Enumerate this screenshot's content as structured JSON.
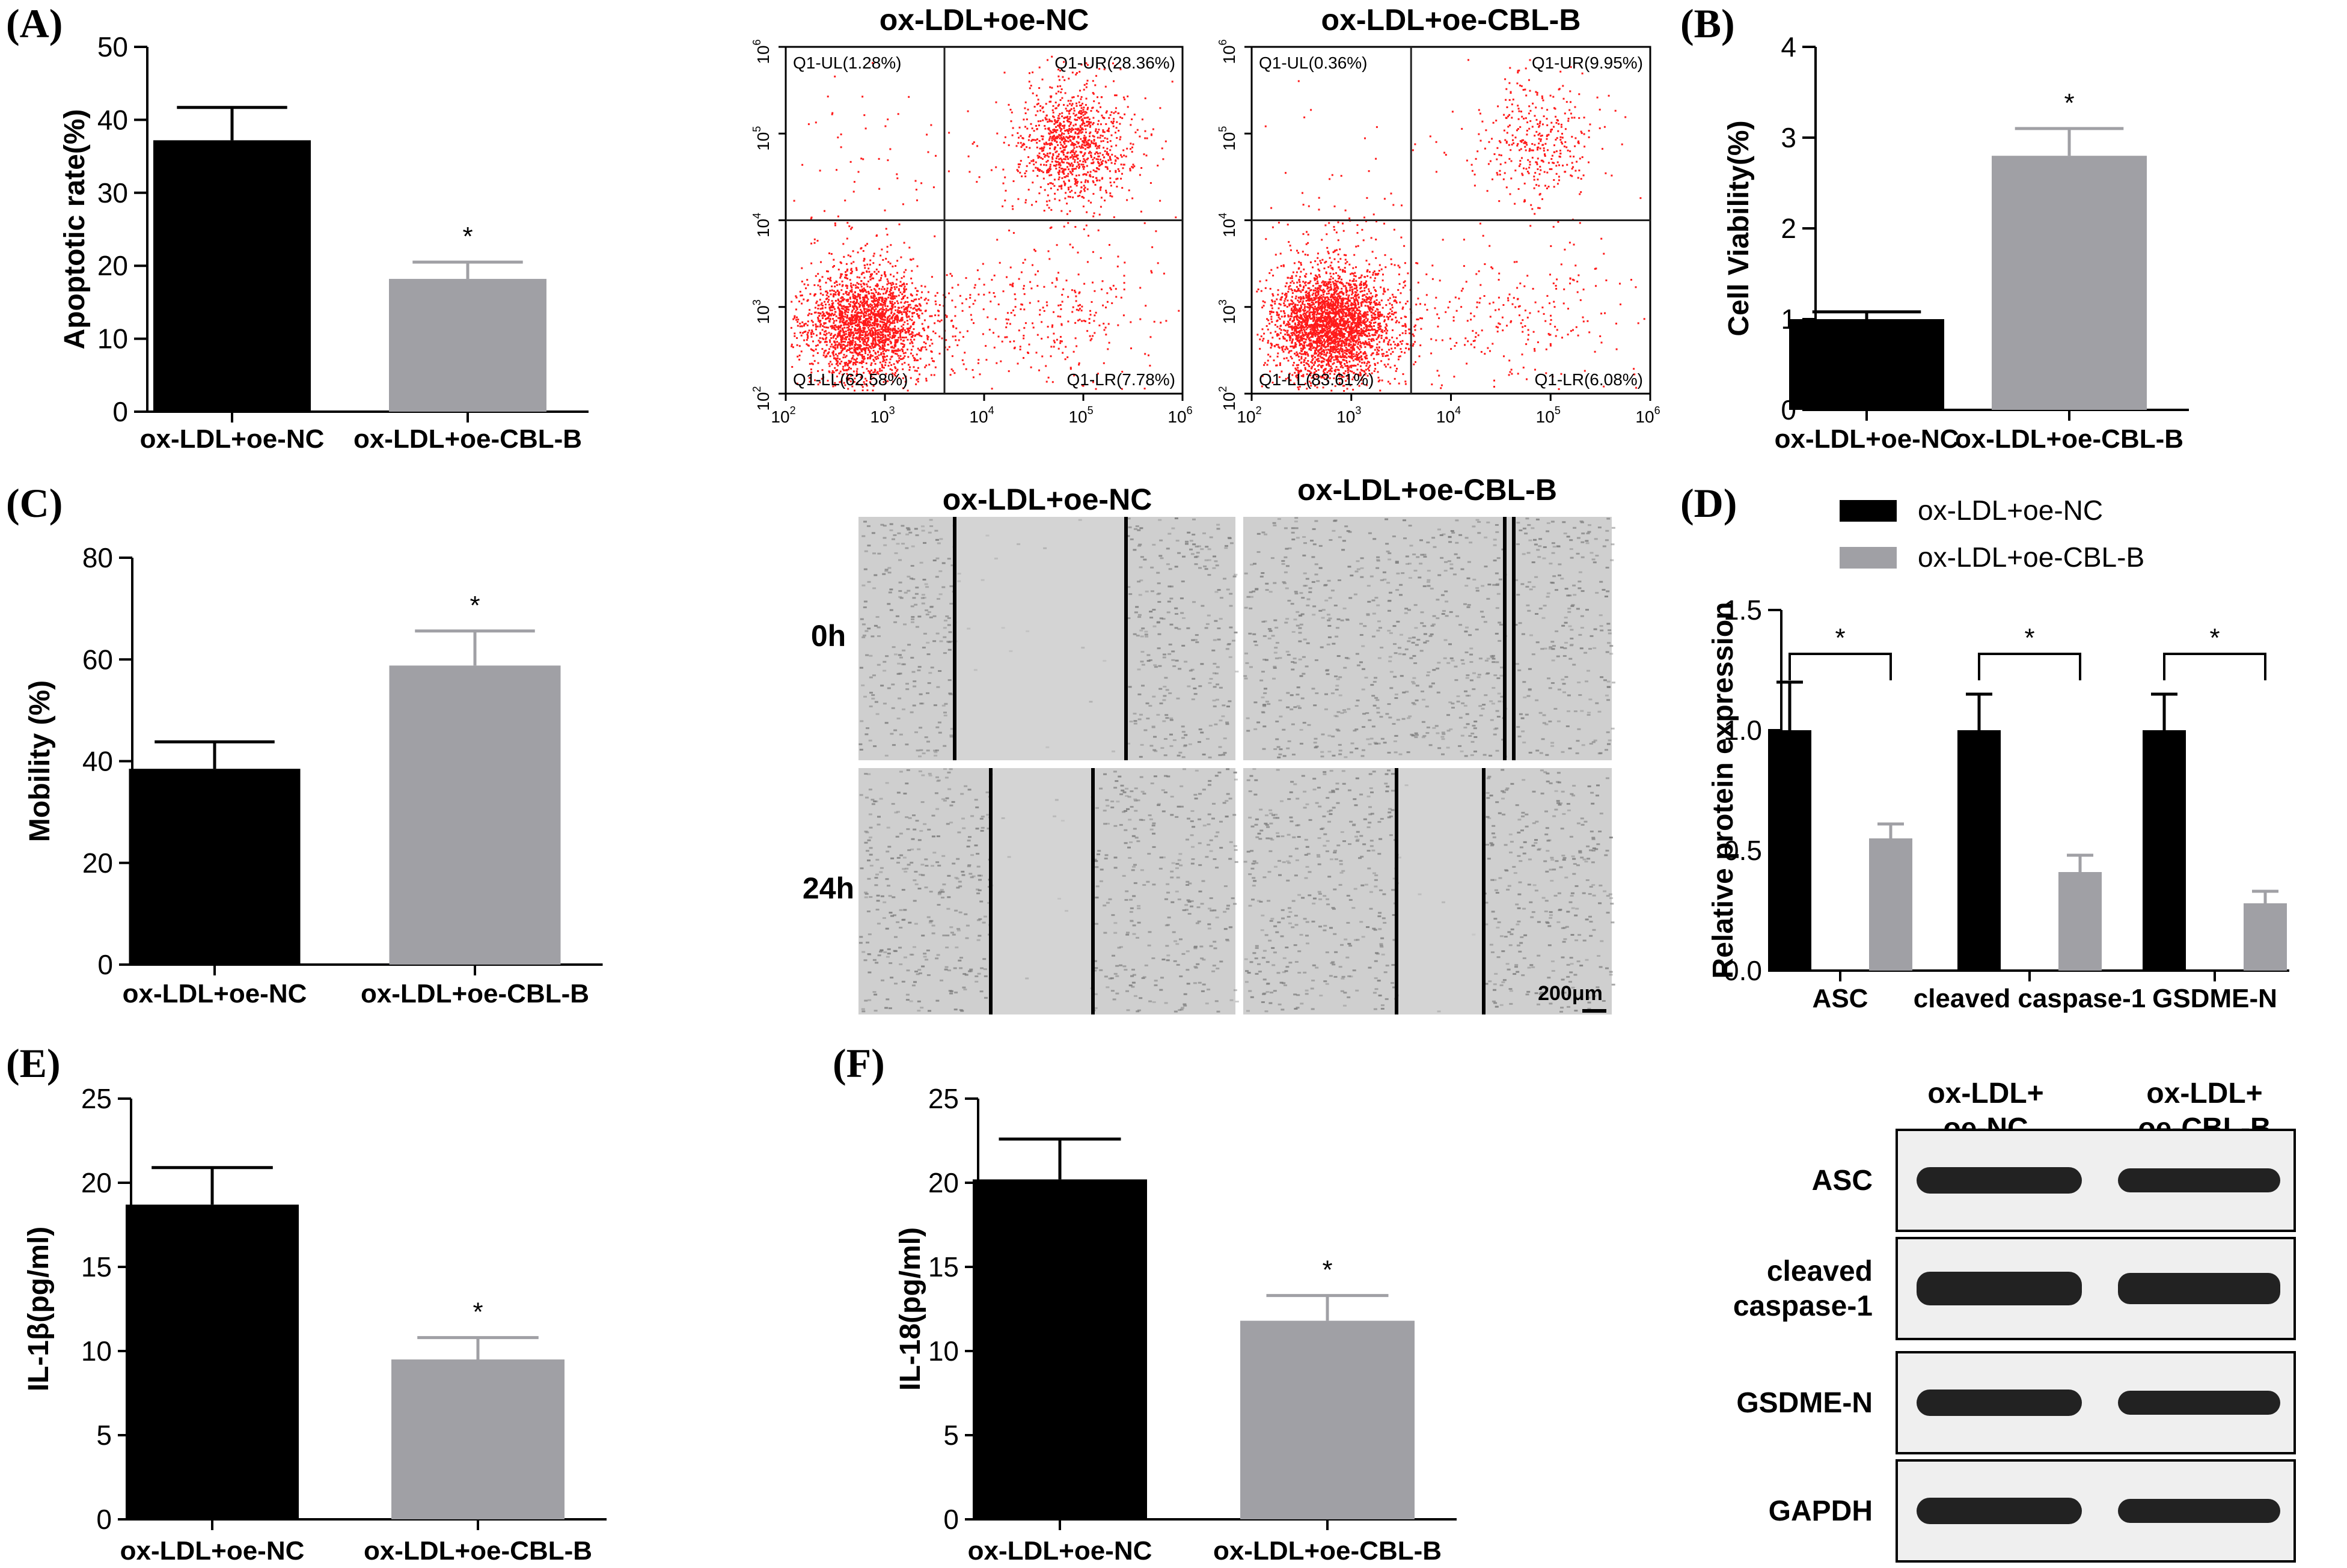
{
  "panel_labels": [
    "(A)",
    "(B)",
    "(C)",
    "(D)",
    "(E)",
    "(F)"
  ],
  "groups": [
    "ox-LDL+oe-NC",
    "ox-LDL+oe-CBL-B"
  ],
  "colors": {
    "nc": "#000000",
    "cbl": "#a0a0a5",
    "dot": "#ff1a1a",
    "blot": "#222222"
  },
  "flow": {
    "axis_tick_base": "10",
    "axis_exponents": [
      "2",
      "3",
      "4",
      "5",
      "6"
    ],
    "panels": [
      {
        "title": "ox-LDL+oe-NC",
        "quadrants": {
          "ul": "Q1-UL(1.28%)",
          "ur": "Q1-UR(28.36%)",
          "ll": "Q1-LL(62.58%)",
          "lr": "Q1-LR(7.78%)"
        }
      },
      {
        "title": "ox-LDL+oe-CBL-B",
        "quadrants": {
          "ul": "Q1-UL(0.36%)",
          "ur": "Q1-UR(9.95%)",
          "ll": "Q1-LL(83.61%)",
          "lr": "Q1-LR(6.08%)"
        }
      }
    ]
  },
  "scratch": {
    "titles": [
      "ox-LDL+oe-NC",
      "ox-LDL+oe-CBL-B"
    ],
    "rows": [
      "0h",
      "24h"
    ],
    "scale_bar": "200μm"
  },
  "blot": {
    "headers": [
      [
        "ox-LDL+",
        "oe-NC"
      ],
      [
        "ox-LDL+",
        "oe-CBL-B"
      ]
    ],
    "rows": [
      [
        "ASC"
      ],
      [
        "cleaved",
        "caspase-1"
      ],
      [
        "GSDME-N"
      ],
      [
        "GAPDH"
      ]
    ]
  },
  "chart_data": [
    {
      "panel": "(A)",
      "type": "bar",
      "categories": [
        "ox-LDL+oe-NC",
        "ox-LDL+oe-CBL-B"
      ],
      "values": [
        37.2,
        18.2
      ],
      "errors": [
        4.5,
        2.3
      ],
      "ylabel": "Apoptotic rate(%)",
      "ylim": [
        0,
        50
      ],
      "yticks": [
        "0",
        "10",
        "20",
        "30",
        "40",
        "50"
      ],
      "significance": [
        "",
        "*"
      ]
    },
    {
      "panel": "(B)",
      "type": "bar",
      "categories": [
        "ox-LDL+oe-NC",
        "ox-LDL+oe-CBL-B"
      ],
      "values": [
        1.0,
        2.8
      ],
      "errors": [
        0.08,
        0.3
      ],
      "ylabel": "Cell Viability(%)",
      "ylim": [
        0,
        4
      ],
      "yticks": [
        "0",
        "1",
        "2",
        "3",
        "4"
      ],
      "significance": [
        "",
        "*"
      ]
    },
    {
      "panel": "(C)",
      "type": "bar",
      "categories": [
        "ox-LDL+oe-NC",
        "ox-LDL+oe-CBL-B"
      ],
      "values": [
        38.5,
        58.8
      ],
      "errors": [
        5.3,
        6.8
      ],
      "ylabel": "Mobility (%)",
      "ylim": [
        0,
        80
      ],
      "yticks": [
        "0",
        "20",
        "40",
        "60",
        "80"
      ],
      "significance": [
        "",
        "*"
      ]
    },
    {
      "panel": "(D)",
      "type": "bar",
      "categories": [
        "ASC",
        "cleaved caspase-1",
        "GSDME-N"
      ],
      "series": [
        {
          "name": "ox-LDL+oe-NC",
          "values": [
            1.0,
            1.0,
            1.0
          ],
          "errors": [
            0.2,
            0.15,
            0.15
          ]
        },
        {
          "name": "ox-LDL+oe-CBL-B",
          "values": [
            0.55,
            0.41,
            0.28
          ],
          "errors": [
            0.06,
            0.07,
            0.05
          ]
        }
      ],
      "ylabel": "Relative protein expression",
      "ylim": [
        0,
        1.5
      ],
      "yticks": [
        "0.0",
        "0.5",
        "1.0",
        "1.5"
      ],
      "significance": [
        "*",
        "*",
        "*"
      ],
      "legend": "top-left"
    },
    {
      "panel": "(E)",
      "type": "bar",
      "categories": [
        "ox-LDL+oe-NC",
        "ox-LDL+oe-CBL-B"
      ],
      "values": [
        18.7,
        9.5
      ],
      "errors": [
        2.2,
        1.3
      ],
      "ylabel": "IL-1β(pg/ml)",
      "ylim": [
        0,
        25
      ],
      "yticks": [
        "0",
        "5",
        "10",
        "15",
        "20",
        "25"
      ],
      "significance": [
        "",
        "*"
      ]
    },
    {
      "panel": "(F)",
      "type": "bar",
      "categories": [
        "ox-LDL+oe-NC",
        "ox-LDL+oe-CBL-B"
      ],
      "values": [
        20.2,
        11.8
      ],
      "errors": [
        2.4,
        1.5
      ],
      "ylabel": "IL-18(pg/ml)",
      "ylim": [
        0,
        25
      ],
      "yticks": [
        "0",
        "5",
        "10",
        "15",
        "20",
        "25"
      ],
      "significance": [
        "",
        "*"
      ]
    }
  ]
}
